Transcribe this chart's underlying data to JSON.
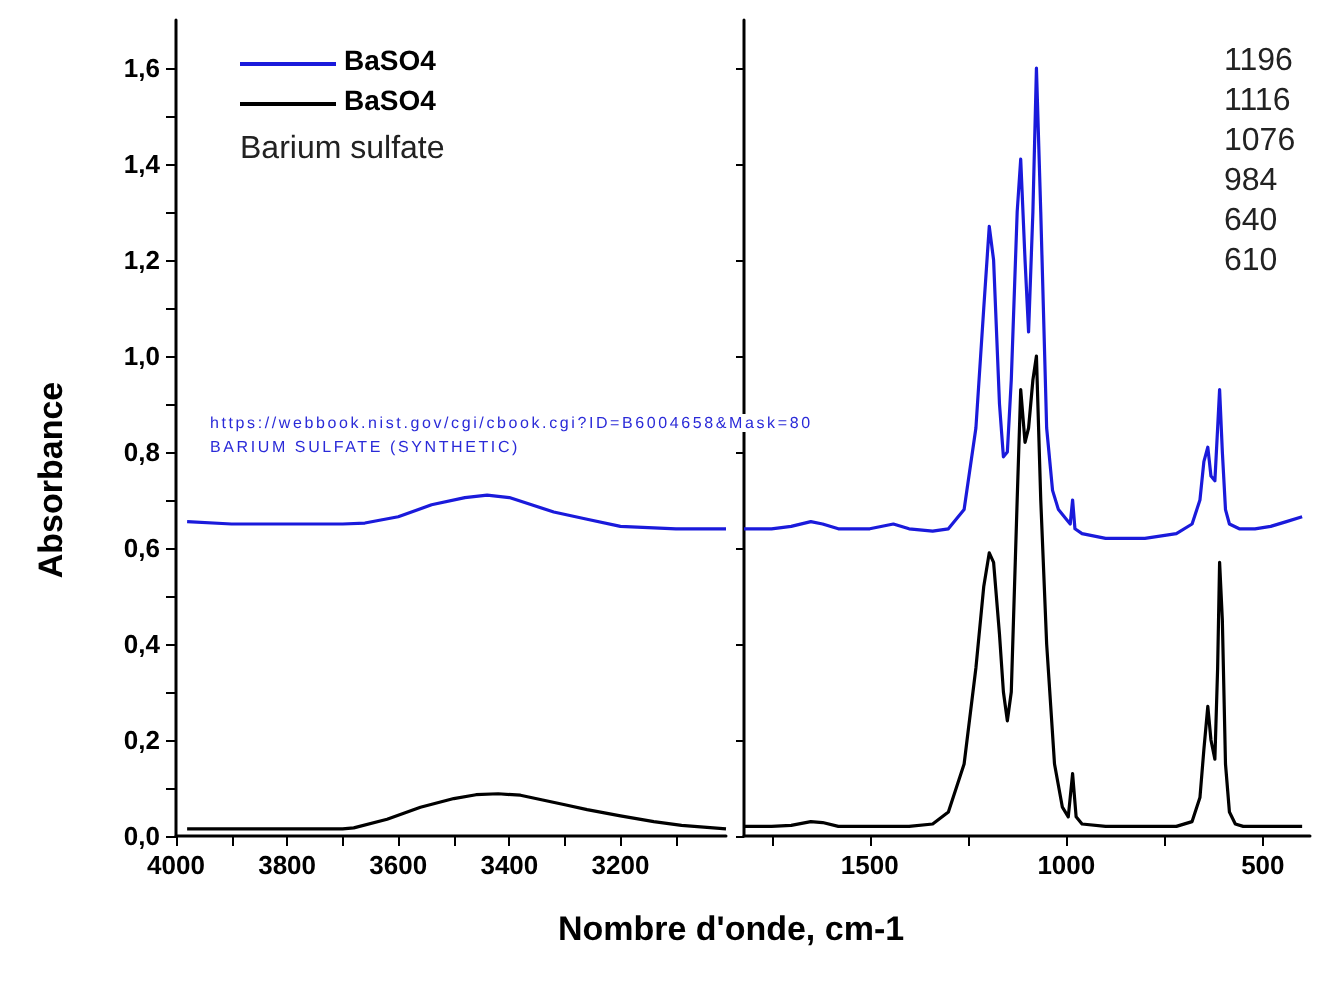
{
  "chart_data": [
    {
      "type": "line",
      "xlabel": "Nombre d'onde, cm-1",
      "ylabel": "Absorbance",
      "legend": "top left",
      "grid": false,
      "marker": "none",
      "line_style": "solid",
      "annotations": [
        "Barium sulfate",
        "https://webbook.nist.gov/cgi/cbook.cgi?ID=B6004658&Mask=80",
        "BARIUM SULFATE (SYNTHETIC)"
      ],
      "xlim": [
        4000,
        3010
      ],
      "xticks": [
        4000,
        {
          "value": 3900,
          "label": null
        },
        3800,
        {
          "value": 3700,
          "label": null
        },
        3600,
        {
          "value": 3500,
          "label": null
        },
        3400,
        {
          "value": 3300,
          "label": null
        },
        3200,
        {
          "value": 3100,
          "label": null
        }
      ],
      "ylim": [
        0,
        1.7
      ],
      "yticks": [
        {
          "value": 0,
          "label": "0,0"
        },
        {
          "value": 0.1,
          "label": null
        },
        {
          "value": 0.2,
          "label": "0,2"
        },
        {
          "value": 0.3,
          "label": null
        },
        {
          "value": 0.4,
          "label": "0,4"
        },
        {
          "value": 0.5,
          "label": null
        },
        {
          "value": 0.6,
          "label": "0,6"
        },
        {
          "value": 0.7,
          "label": null
        },
        {
          "value": 0.8,
          "label": "0,8"
        },
        {
          "value": 0.9,
          "label": null
        },
        {
          "value": 1.0,
          "label": "1,0"
        },
        {
          "value": 1.1,
          "label": null
        },
        {
          "value": 1.2,
          "label": "1,2"
        },
        {
          "value": 1.3,
          "label": null
        },
        {
          "value": 1.4,
          "label": "1,4"
        },
        {
          "value": 1.5,
          "label": null
        },
        {
          "value": 1.6,
          "label": "1,6"
        }
      ],
      "series": [
        {
          "name": "BaSO4",
          "color": "#1a1adb",
          "x": [
            3980,
            3900,
            3800,
            3700,
            3660,
            3600,
            3540,
            3480,
            3440,
            3400,
            3360,
            3320,
            3260,
            3200,
            3100,
            3010
          ],
          "values": [
            0.655,
            0.65,
            0.65,
            0.65,
            0.652,
            0.665,
            0.69,
            0.705,
            0.71,
            0.705,
            0.69,
            0.675,
            0.66,
            0.645,
            0.64,
            0.64
          ]
        },
        {
          "name": "BaSO4",
          "color": "#000000",
          "x": [
            3980,
            3900,
            3800,
            3700,
            3680,
            3620,
            3560,
            3500,
            3460,
            3420,
            3380,
            3340,
            3300,
            3260,
            3200,
            3140,
            3090,
            3010
          ],
          "values": [
            0.015,
            0.015,
            0.015,
            0.015,
            0.017,
            0.035,
            0.06,
            0.078,
            0.086,
            0.088,
            0.085,
            0.075,
            0.065,
            0.055,
            0.042,
            0.03,
            0.022,
            0.015
          ]
        }
      ]
    },
    {
      "type": "line",
      "tick_labels": "x",
      "grid": false,
      "marker": "none",
      "line_style": "solid",
      "annotations": [
        "1196",
        "1116",
        "1076",
        "984",
        "640",
        "610"
      ],
      "xlim": [
        1820,
        380
      ],
      "xticks": [
        {
          "value": 1750,
          "label": null
        },
        1500,
        {
          "value": 1250,
          "label": null
        },
        1000,
        {
          "value": 750,
          "label": null
        },
        500
      ],
      "ylim": [
        0,
        1.7
      ],
      "yticks": [
        {
          "value": 0,
          "label": null
        },
        {
          "value": 0.2,
          "label": null
        },
        {
          "value": 0.4,
          "label": null
        },
        {
          "value": 0.6,
          "label": null
        },
        {
          "value": 0.8,
          "label": null
        },
        {
          "value": 1.0,
          "label": null
        },
        {
          "value": 1.2,
          "label": null
        },
        {
          "value": 1.4,
          "label": null
        },
        {
          "value": 1.6,
          "label": null
        }
      ],
      "series": [
        {
          "color": "#1a1adb",
          "x": [
            1820,
            1750,
            1700,
            1650,
            1620,
            1580,
            1500,
            1440,
            1400,
            1340,
            1300,
            1260,
            1230,
            1210,
            1196,
            1185,
            1170,
            1160,
            1150,
            1140,
            1125,
            1116,
            1105,
            1096,
            1085,
            1076,
            1065,
            1050,
            1035,
            1020,
            1000,
            990,
            984,
            978,
            960,
            900,
            800,
            720,
            680,
            660,
            650,
            640,
            632,
            622,
            615,
            610,
            603,
            595,
            585,
            560,
            520,
            480,
            440,
            400
          ],
          "values": [
            0.64,
            0.64,
            0.645,
            0.655,
            0.65,
            0.64,
            0.64,
            0.65,
            0.64,
            0.635,
            0.64,
            0.68,
            0.85,
            1.1,
            1.27,
            1.2,
            0.9,
            0.79,
            0.8,
            0.95,
            1.3,
            1.41,
            1.2,
            1.05,
            1.3,
            1.6,
            1.3,
            0.85,
            0.72,
            0.68,
            0.66,
            0.65,
            0.7,
            0.64,
            0.63,
            0.62,
            0.62,
            0.63,
            0.65,
            0.7,
            0.78,
            0.81,
            0.75,
            0.74,
            0.85,
            0.93,
            0.8,
            0.68,
            0.65,
            0.64,
            0.64,
            0.645,
            0.655,
            0.665
          ]
        },
        {
          "color": "#000000",
          "x": [
            1820,
            1750,
            1700,
            1650,
            1620,
            1580,
            1500,
            1400,
            1340,
            1300,
            1260,
            1230,
            1210,
            1196,
            1185,
            1170,
            1160,
            1150,
            1140,
            1125,
            1116,
            1105,
            1096,
            1085,
            1076,
            1065,
            1050,
            1030,
            1010,
            995,
            984,
            975,
            960,
            900,
            800,
            720,
            680,
            660,
            650,
            640,
            632,
            622,
            615,
            610,
            603,
            595,
            585,
            570,
            550,
            500,
            450,
            400
          ],
          "values": [
            0.02,
            0.02,
            0.022,
            0.03,
            0.028,
            0.02,
            0.02,
            0.02,
            0.025,
            0.05,
            0.15,
            0.35,
            0.52,
            0.59,
            0.57,
            0.42,
            0.3,
            0.24,
            0.3,
            0.7,
            0.93,
            0.82,
            0.85,
            0.95,
            1.0,
            0.7,
            0.4,
            0.15,
            0.06,
            0.04,
            0.13,
            0.04,
            0.025,
            0.02,
            0.02,
            0.02,
            0.03,
            0.08,
            0.18,
            0.27,
            0.2,
            0.16,
            0.35,
            0.57,
            0.45,
            0.15,
            0.05,
            0.025,
            0.02,
            0.02,
            0.02,
            0.02
          ]
        }
      ]
    }
  ]
}
